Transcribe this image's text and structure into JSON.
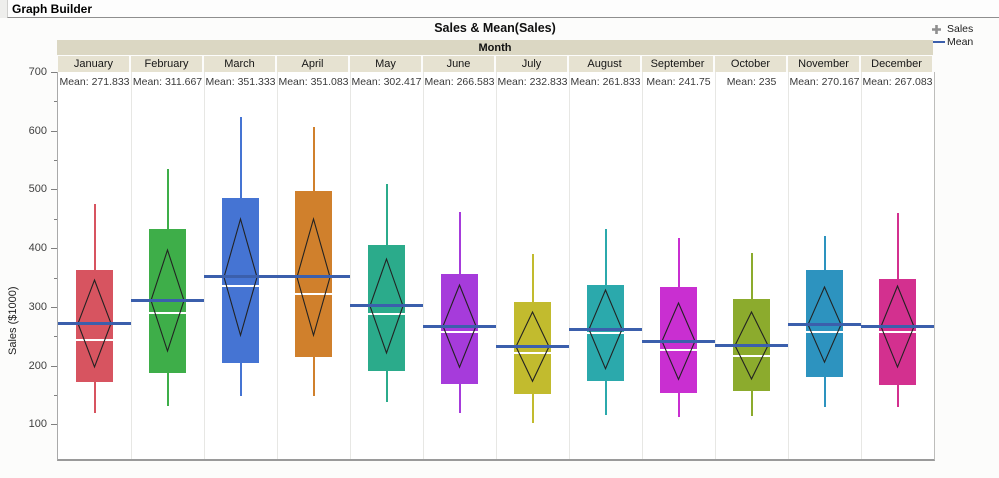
{
  "header": {
    "title": "Graph Builder"
  },
  "chart_data": {
    "type": "box",
    "title": "Sales & Mean(Sales)",
    "group_label": "Month",
    "ylabel": "Sales ($1000)",
    "yticks": [
      100,
      200,
      300,
      400,
      500,
      600,
      700
    ],
    "ytick_minor_step": 50,
    "ylim": [
      41,
      700
    ],
    "grid": "vertical-column-separators-only",
    "legend_position": "top-right",
    "legend": [
      {
        "label": "Sales",
        "marker": "plus",
        "marker_color": "#8f8f8f"
      },
      {
        "label": "Mean",
        "marker": "line",
        "marker_color": "#3b5fac"
      }
    ],
    "colors": {
      "mean_line": "#3b5fac",
      "diamond_stroke": "#222222",
      "median_line": "#ffffff",
      "group_band_bg": "#dbd7c3",
      "month_cell_bg": "#e6e2d1"
    },
    "months": [
      {
        "name": "January",
        "mean_label": "Mean: 271.833",
        "mean": 271.833,
        "color": "#d75460",
        "whisker_low": 120,
        "q1": 172,
        "median": 243,
        "q3": 362,
        "whisker_high": 475,
        "ci_half": 74
      },
      {
        "name": "February",
        "mean_label": "Mean: 311.667",
        "mean": 311.667,
        "color": "#3eae49",
        "whisker_low": 132,
        "q1": 188,
        "median": 290,
        "q3": 432,
        "whisker_high": 535,
        "ci_half": 86
      },
      {
        "name": "March",
        "mean_label": "Mean: 351.333",
        "mean": 351.333,
        "color": "#4574d3",
        "whisker_low": 148,
        "q1": 205,
        "median": 335,
        "q3": 485,
        "whisker_high": 623,
        "ci_half": 99
      },
      {
        "name": "April",
        "mean_label": "Mean: 351.083",
        "mean": 351.083,
        "color": "#d0802c",
        "whisker_low": 148,
        "q1": 215,
        "median": 322,
        "q3": 497,
        "whisker_high": 607,
        "ci_half": 99
      },
      {
        "name": "May",
        "mean_label": "Mean: 302.417",
        "mean": 302.417,
        "color": "#2bab8b",
        "whisker_low": 138,
        "q1": 191,
        "median": 288,
        "q3": 405,
        "whisker_high": 510,
        "ci_half": 80
      },
      {
        "name": "June",
        "mean_label": "Mean: 266.583",
        "mean": 266.583,
        "color": "#a63bdb",
        "whisker_low": 119,
        "q1": 168,
        "median": 257,
        "q3": 356,
        "whisker_high": 462,
        "ci_half": 70
      },
      {
        "name": "July",
        "mean_label": "Mean: 232.833",
        "mean": 232.833,
        "color": "#c2bb2e",
        "whisker_low": 103,
        "q1": 152,
        "median": 221,
        "q3": 309,
        "whisker_high": 390,
        "ci_half": 59
      },
      {
        "name": "August",
        "mean_label": "Mean: 261.833",
        "mean": 261.833,
        "color": "#2ba9ac",
        "whisker_low": 116,
        "q1": 174,
        "median": 255,
        "q3": 338,
        "whisker_high": 433,
        "ci_half": 67
      },
      {
        "name": "September",
        "mean_label": "Mean: 241.75",
        "mean": 241.75,
        "color": "#c92fd1",
        "whisker_low": 113,
        "q1": 153,
        "median": 227,
        "q3": 334,
        "whisker_high": 418,
        "ci_half": 65
      },
      {
        "name": "October",
        "mean_label": "Mean: 235",
        "mean": 235,
        "color": "#8cab2d",
        "whisker_low": 115,
        "q1": 156,
        "median": 217,
        "q3": 313,
        "whisker_high": 392,
        "ci_half": 57
      },
      {
        "name": "November",
        "mean_label": "Mean: 270.167",
        "mean": 270.167,
        "color": "#2d93bf",
        "whisker_low": 130,
        "q1": 181,
        "median": 257,
        "q3": 362,
        "whisker_high": 421,
        "ci_half": 64
      },
      {
        "name": "December",
        "mean_label": "Mean: 267.083",
        "mean": 267.083,
        "color": "#d3308f",
        "whisker_low": 130,
        "q1": 167,
        "median": 257,
        "q3": 348,
        "whisker_high": 460,
        "ci_half": 69
      }
    ]
  }
}
